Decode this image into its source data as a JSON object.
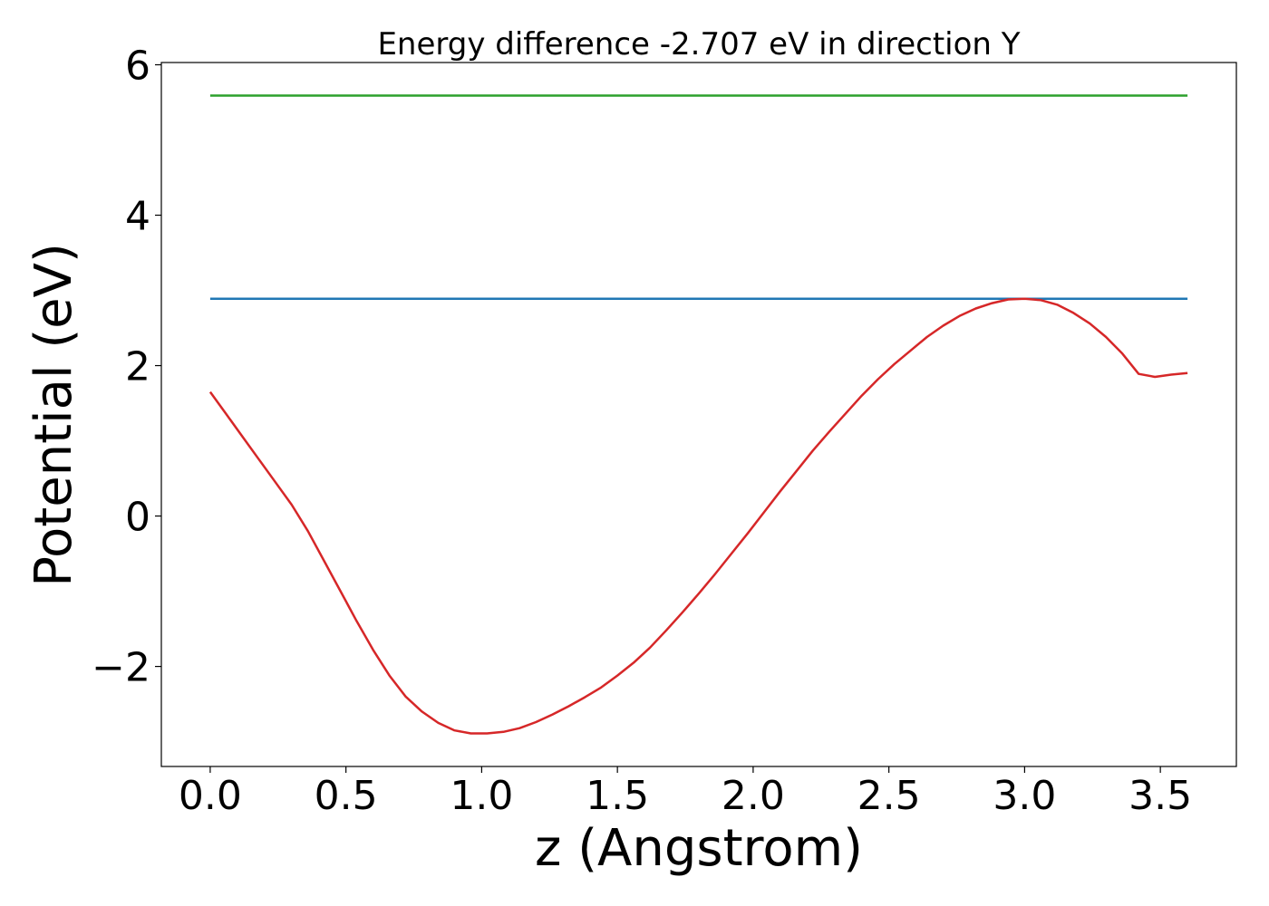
{
  "chart_data": {
    "type": "line",
    "title": "Energy difference -2.707 eV in direction Y",
    "xlabel": "z (Angstrom)",
    "ylabel": "Potential (eV)",
    "xlim": [
      -0.18,
      3.78
    ],
    "ylim": [
      -3.33,
      6.03
    ],
    "xticks": [
      0.0,
      0.5,
      1.0,
      1.5,
      2.0,
      2.5,
      3.0,
      3.5
    ],
    "xtick_labels": [
      "0.0",
      "0.5",
      "1.0",
      "1.5",
      "2.0",
      "2.5",
      "3.0",
      "3.5"
    ],
    "yticks": [
      -2,
      0,
      2,
      4,
      6
    ],
    "ytick_labels": [
      "−2",
      "0",
      "2",
      "4",
      "6"
    ],
    "grid": false,
    "series": [
      {
        "color": "#2ca02c",
        "x": [
          0.0,
          3.6
        ],
        "y": [
          5.59,
          5.59
        ]
      },
      {
        "color": "#1f77b4",
        "x": [
          0.0,
          3.6
        ],
        "y": [
          2.89,
          2.89
        ]
      },
      {
        "color": "#d62728",
        "x": [
          0.0,
          0.06,
          0.12,
          0.18,
          0.24,
          0.3,
          0.36,
          0.42,
          0.48,
          0.54,
          0.6,
          0.66,
          0.72,
          0.78,
          0.84,
          0.9,
          0.96,
          1.02,
          1.08,
          1.14,
          1.2,
          1.26,
          1.32,
          1.38,
          1.44,
          1.5,
          1.56,
          1.62,
          1.68,
          1.74,
          1.8,
          1.86,
          1.92,
          1.98,
          2.04,
          2.1,
          2.16,
          2.22,
          2.28,
          2.34,
          2.4,
          2.46,
          2.52,
          2.58,
          2.64,
          2.7,
          2.76,
          2.82,
          2.88,
          2.94,
          3.0,
          3.06,
          3.12,
          3.18,
          3.24,
          3.3,
          3.36,
          3.42,
          3.48,
          3.54,
          3.6
        ],
        "y": [
          1.65,
          1.35,
          1.05,
          0.75,
          0.45,
          0.15,
          -0.2,
          -0.6,
          -1.0,
          -1.4,
          -1.78,
          -2.12,
          -2.4,
          -2.6,
          -2.75,
          -2.85,
          -2.89,
          -2.89,
          -2.87,
          -2.82,
          -2.74,
          -2.64,
          -2.53,
          -2.41,
          -2.28,
          -2.12,
          -1.95,
          -1.75,
          -1.52,
          -1.28,
          -1.03,
          -0.77,
          -0.5,
          -0.23,
          0.05,
          0.33,
          0.6,
          0.87,
          1.12,
          1.36,
          1.6,
          1.82,
          2.02,
          2.2,
          2.38,
          2.53,
          2.66,
          2.76,
          2.83,
          2.88,
          2.89,
          2.87,
          2.81,
          2.7,
          2.56,
          2.38,
          2.16,
          1.89,
          1.85,
          1.88,
          1.9
        ]
      }
    ]
  }
}
